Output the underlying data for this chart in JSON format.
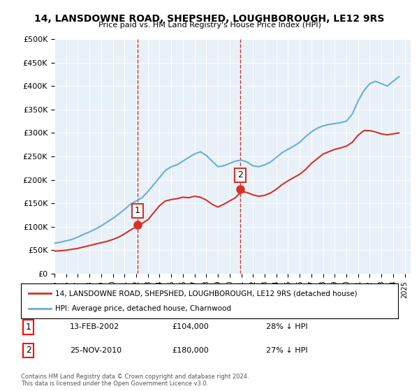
{
  "title": "14, LANSDOWNE ROAD, SHEPSHED, LOUGHBOROUGH, LE12 9RS",
  "subtitle": "Price paid vs. HM Land Registry's House Price Index (HPI)",
  "ylabel_ticks": [
    0,
    50000,
    100000,
    150000,
    200000,
    250000,
    300000,
    350000,
    400000,
    450000,
    500000
  ],
  "ytick_labels": [
    "£0",
    "£50K",
    "£100K",
    "£150K",
    "£200K",
    "£250K",
    "£300K",
    "£350K",
    "£400K",
    "£450K",
    "£500K"
  ],
  "ylim": [
    0,
    500000
  ],
  "xlim_start": 1995.0,
  "xlim_end": 2025.5,
  "hpi_color": "#6baed6",
  "price_color": "#d73027",
  "marker_color": "#d73027",
  "vline_color": "#d73027",
  "bg_color": "#e8f0f8",
  "transaction1_date": "13-FEB-2002",
  "transaction1_price": 104000,
  "transaction1_label": "28% ↓ HPI",
  "transaction1_year": 2002.12,
  "transaction2_date": "25-NOV-2010",
  "transaction2_price": 180000,
  "transaction2_label": "27% ↓ HPI",
  "transaction2_year": 2010.9,
  "legend_label_red": "14, LANSDOWNE ROAD, SHEPSHED, LOUGHBOROUGH, LE12 9RS (detached house)",
  "legend_label_blue": "HPI: Average price, detached house, Charnwood",
  "footer": "Contains HM Land Registry data © Crown copyright and database right 2024.\nThis data is licensed under the Open Government Licence v3.0.",
  "hpi_x": [
    1995,
    1995.5,
    1996,
    1996.5,
    1997,
    1997.5,
    1998,
    1998.5,
    1999,
    1999.5,
    2000,
    2000.5,
    2001,
    2001.5,
    2002,
    2002.5,
    2003,
    2003.5,
    2004,
    2004.5,
    2005,
    2005.5,
    2006,
    2006.5,
    2007,
    2007.5,
    2008,
    2008.5,
    2009,
    2009.5,
    2010,
    2010.5,
    2011,
    2011.5,
    2012,
    2012.5,
    2013,
    2013.5,
    2014,
    2014.5,
    2015,
    2015.5,
    2016,
    2016.5,
    2017,
    2017.5,
    2018,
    2018.5,
    2019,
    2019.5,
    2020,
    2020.5,
    2021,
    2021.5,
    2022,
    2022.5,
    2023,
    2023.5,
    2024,
    2024.5
  ],
  "hpi_y": [
    65000,
    67000,
    70000,
    73000,
    78000,
    84000,
    89000,
    95000,
    102000,
    110000,
    118000,
    127000,
    137000,
    148000,
    155000,
    162000,
    175000,
    190000,
    205000,
    220000,
    228000,
    232000,
    240000,
    248000,
    255000,
    260000,
    252000,
    240000,
    228000,
    230000,
    235000,
    240000,
    242000,
    238000,
    230000,
    228000,
    232000,
    238000,
    248000,
    258000,
    265000,
    272000,
    280000,
    292000,
    302000,
    310000,
    315000,
    318000,
    320000,
    322000,
    325000,
    340000,
    368000,
    390000,
    405000,
    410000,
    405000,
    400000,
    410000,
    420000
  ],
  "price_x": [
    1995,
    1995.5,
    1996,
    1996.5,
    1997,
    1997.5,
    1998,
    1998.5,
    1999,
    1999.5,
    2000,
    2000.5,
    2001,
    2001.5,
    2002,
    2002.5,
    2003,
    2003.5,
    2004,
    2004.5,
    2005,
    2005.5,
    2006,
    2006.5,
    2007,
    2007.5,
    2008,
    2008.5,
    2009,
    2009.5,
    2010,
    2010.5,
    2011,
    2011.5,
    2012,
    2012.5,
    2013,
    2013.5,
    2014,
    2014.5,
    2015,
    2015.5,
    2016,
    2016.5,
    2017,
    2017.5,
    2018,
    2018.5,
    2019,
    2019.5,
    2020,
    2020.5,
    2021,
    2021.5,
    2022,
    2022.5,
    2023,
    2023.5,
    2024,
    2024.5
  ],
  "price_y": [
    48000,
    49000,
    50000,
    52000,
    54000,
    57000,
    60000,
    63000,
    66000,
    69000,
    73000,
    78000,
    85000,
    93000,
    100000,
    107000,
    115000,
    130000,
    145000,
    155000,
    158000,
    160000,
    163000,
    162000,
    165000,
    163000,
    157000,
    148000,
    142000,
    148000,
    155000,
    162000,
    175000,
    173000,
    168000,
    165000,
    167000,
    172000,
    180000,
    190000,
    198000,
    205000,
    212000,
    222000,
    235000,
    245000,
    255000,
    260000,
    265000,
    268000,
    272000,
    280000,
    295000,
    305000,
    305000,
    302000,
    298000,
    296000,
    298000,
    300000
  ]
}
